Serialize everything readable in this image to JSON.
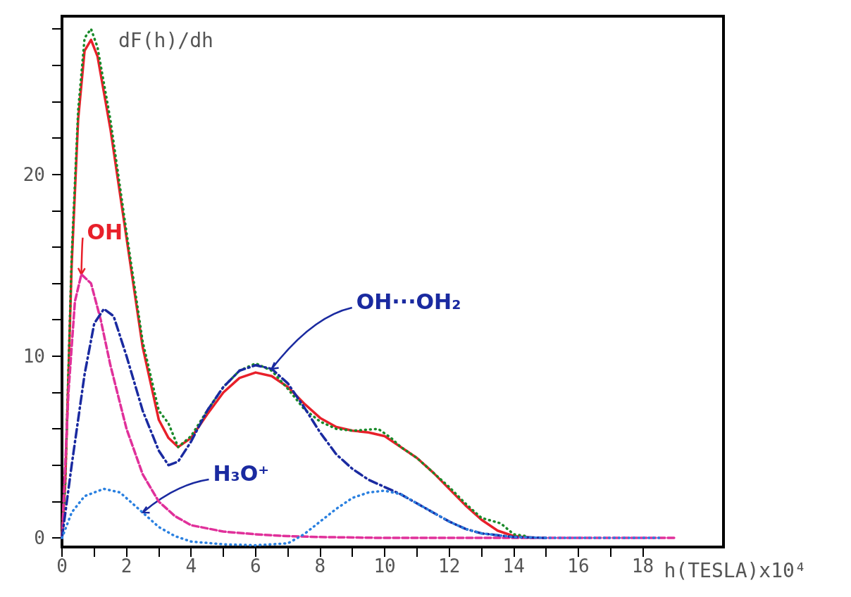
{
  "chart_data": {
    "type": "line",
    "xlabel": "h(TESLA)x10⁴",
    "ylabel": "dF(h)/dh",
    "xlim": [
      0,
      20.5
    ],
    "xticks": [
      0,
      {
        "value": 1,
        "label": null
      },
      2,
      {
        "value": 3,
        "label": null
      },
      4,
      {
        "value": 5,
        "label": null
      },
      6,
      {
        "value": 7,
        "label": null
      },
      8,
      {
        "value": 9,
        "label": null
      },
      10,
      {
        "value": 11,
        "label": null
      },
      12,
      {
        "value": 13,
        "label": null
      },
      14,
      {
        "value": 15,
        "label": null
      },
      16,
      {
        "value": 17,
        "label": null
      },
      18
    ],
    "ylim": [
      -0.5,
      28.7
    ],
    "yticks": [
      0,
      {
        "value": 2,
        "label": null
      },
      {
        "value": 4,
        "label": null
      },
      {
        "value": 6,
        "label": null
      },
      {
        "value": 8,
        "label": null
      },
      10,
      {
        "value": 12,
        "label": null
      },
      {
        "value": 14,
        "label": null
      },
      {
        "value": 16,
        "label": null
      },
      {
        "value": 18,
        "label": null
      },
      20,
      {
        "value": 22,
        "label": null
      },
      {
        "value": 24,
        "label": null
      },
      {
        "value": 26,
        "label": null
      },
      {
        "value": 28,
        "label": null
      }
    ],
    "grid": false,
    "marker": "none",
    "series": [
      {
        "color": "#e8202a",
        "line_style": "solid",
        "x": [
          0,
          0.1,
          0.3,
          0.5,
          0.7,
          0.9,
          1.1,
          1.5,
          2,
          2.5,
          3,
          3.3,
          3.6,
          4,
          4.5,
          5,
          5.5,
          6,
          6.5,
          7,
          7.5,
          8,
          8.5,
          9,
          9.5,
          10,
          10.5,
          11,
          11.5,
          12,
          12.5,
          13,
          13.5,
          14,
          14.6
        ],
        "values": [
          0,
          3,
          15,
          23,
          26.8,
          27.4,
          26.5,
          22.5,
          16.5,
          10.5,
          6.5,
          5.5,
          5.0,
          5.5,
          6.8,
          8,
          8.8,
          9.1,
          8.9,
          8.3,
          7.4,
          6.6,
          6.1,
          5.9,
          5.8,
          5.6,
          5.0,
          4.4,
          3.6,
          2.7,
          1.8,
          1.0,
          0.4,
          0.1,
          0
        ]
      },
      {
        "color": "#1a8a2a",
        "line_style": "dotted",
        "x": [
          0,
          0.1,
          0.3,
          0.5,
          0.7,
          0.9,
          1.1,
          1.5,
          2,
          2.5,
          3,
          3.3,
          3.6,
          4,
          4.5,
          5,
          5.5,
          6,
          6.5,
          7,
          7.5,
          8,
          8.5,
          9,
          9.8,
          10.2,
          10.5,
          11,
          11.5,
          12,
          12.5,
          13,
          13.6,
          14,
          14.4
        ],
        "values": [
          0,
          3,
          15.5,
          23.5,
          27.5,
          28,
          27,
          23,
          16.8,
          10.8,
          7,
          6.3,
          5.0,
          5.6,
          7,
          8.3,
          9.2,
          9.6,
          9.2,
          8.2,
          7.1,
          6.4,
          6.0,
          5.9,
          6.0,
          5.5,
          5.0,
          4.4,
          3.6,
          2.8,
          1.9,
          1.1,
          0.8,
          0.2,
          0.1
        ]
      },
      {
        "color": "#e0309a",
        "line_style": "dashed",
        "x": [
          0,
          0.2,
          0.4,
          0.6,
          0.9,
          1.2,
          1.5,
          2,
          2.5,
          3,
          3.5,
          4,
          5,
          6,
          7,
          8,
          10,
          19
        ],
        "values": [
          0,
          8,
          13,
          14.5,
          14,
          12,
          9.5,
          6,
          3.5,
          2,
          1.2,
          0.7,
          0.35,
          0.2,
          0.1,
          0.05,
          0,
          0
        ]
      },
      {
        "color": "#1a2aa0",
        "line_style": "dashdot",
        "x": [
          0,
          0.3,
          0.7,
          1,
          1.3,
          1.6,
          2,
          2.5,
          3,
          3.3,
          3.6,
          4,
          4.5,
          5,
          5.5,
          6,
          6.5,
          7,
          7.5,
          8,
          8.5,
          9,
          9.5,
          10,
          10.5,
          11,
          11.5,
          12,
          12.5,
          13,
          14,
          15
        ],
        "values": [
          0,
          4,
          9,
          11.8,
          12.6,
          12.2,
          10,
          7,
          4.8,
          4.0,
          4.2,
          5.3,
          7,
          8.3,
          9.2,
          9.5,
          9.3,
          8.5,
          7.2,
          5.8,
          4.6,
          3.8,
          3.2,
          2.8,
          2.4,
          1.9,
          1.4,
          0.9,
          0.5,
          0.25,
          0.05,
          0
        ]
      },
      {
        "color": "#2a80e0",
        "line_style": "dotted",
        "x": [
          0,
          0.3,
          0.7,
          1.3,
          1.8,
          2.5,
          3,
          3.5,
          4,
          5,
          6,
          7,
          7.5,
          8,
          8.5,
          9,
          9.5,
          10,
          10.5,
          11,
          11.5,
          12,
          12.5,
          13,
          14,
          15,
          18.6
        ],
        "values": [
          0,
          1.4,
          2.3,
          2.7,
          2.5,
          1.4,
          0.6,
          0.1,
          -0.2,
          -0.35,
          -0.4,
          -0.3,
          0.2,
          0.9,
          1.6,
          2.2,
          2.5,
          2.6,
          2.4,
          1.9,
          1.4,
          0.9,
          0.5,
          0.25,
          0.05,
          0,
          0
        ]
      }
    ],
    "annotations": [
      {
        "text": "OH",
        "x": 0.6,
        "y": 14.5
      },
      {
        "text": "OH···OH₂",
        "x": 6.5,
        "y": 9.3
      },
      {
        "text": "H₃O⁺",
        "x": 2.5,
        "y": 1.4
      }
    ]
  }
}
